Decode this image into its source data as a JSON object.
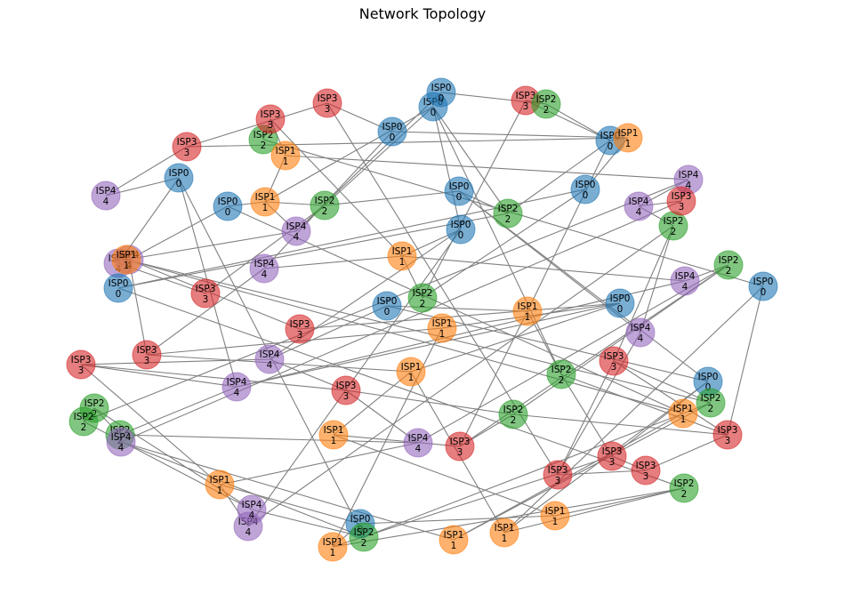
{
  "title": "Network Topology",
  "colors": {
    "ISP0": "#1f77b4",
    "ISP1": "#ff7f0e",
    "ISP2": "#2ca02c",
    "ISP3": "#d62728",
    "ISP4": "#9467bd",
    "edge": "#808080"
  },
  "nodes": [
    {
      "id": "n1",
      "isp": "ISP4",
      "label": "4"
    },
    {
      "id": "n2",
      "isp": "ISP0",
      "label": "0"
    },
    {
      "id": "n3",
      "isp": "ISP0",
      "label": "0"
    },
    {
      "id": "n4",
      "isp": "ISP4",
      "label": "4"
    },
    {
      "id": "n5",
      "isp": "ISP0",
      "label": "0"
    },
    {
      "id": "n6",
      "isp": "ISP3",
      "label": "3"
    },
    {
      "id": "n7",
      "isp": "ISP0",
      "label": "0"
    },
    {
      "id": "n8",
      "isp": "ISP2",
      "label": "2"
    },
    {
      "id": "n9",
      "isp": "ISP3",
      "label": "3"
    },
    {
      "id": "n10",
      "isp": "ISP1",
      "label": "1"
    },
    {
      "id": "n11",
      "isp": "ISP1",
      "label": "1"
    },
    {
      "id": "n12",
      "isp": "ISP0",
      "label": "0"
    },
    {
      "id": "n13",
      "isp": "ISP0",
      "label": "0"
    },
    {
      "id": "n14",
      "isp": "ISP3",
      "label": "3"
    },
    {
      "id": "n15",
      "isp": "ISP4",
      "label": "4"
    },
    {
      "id": "n16",
      "isp": "ISP2",
      "label": "2"
    },
    {
      "id": "n17",
      "isp": "ISP3",
      "label": "3"
    },
    {
      "id": "n18",
      "isp": "ISP0",
      "label": "0"
    },
    {
      "id": "n19",
      "isp": "ISP1",
      "label": "1"
    },
    {
      "id": "n20",
      "isp": "ISP2",
      "label": "2"
    },
    {
      "id": "n21",
      "isp": "ISP4",
      "label": "4"
    },
    {
      "id": "n22",
      "isp": "ISP0",
      "label": "0"
    },
    {
      "id": "n23",
      "isp": "ISP2",
      "label": "2"
    },
    {
      "id": "n24",
      "isp": "ISP3",
      "label": "3"
    },
    {
      "id": "n25",
      "isp": "ISP2",
      "label": "2"
    },
    {
      "id": "n26",
      "isp": "ISP0",
      "label": "0"
    },
    {
      "id": "n27",
      "isp": "ISP1",
      "label": "1"
    },
    {
      "id": "n28",
      "isp": "ISP0",
      "label": "0"
    },
    {
      "id": "n29",
      "isp": "ISP1",
      "label": "1"
    },
    {
      "id": "n30",
      "isp": "ISP0",
      "label": "0"
    },
    {
      "id": "n31",
      "isp": "ISP4",
      "label": "4"
    },
    {
      "id": "n32",
      "isp": "ISP3",
      "label": "3"
    },
    {
      "id": "n33",
      "isp": "ISP3",
      "label": "3"
    },
    {
      "id": "n34",
      "isp": "ISP1",
      "label": "1"
    },
    {
      "id": "n35",
      "isp": "ISP0",
      "label": "0"
    },
    {
      "id": "n36",
      "isp": "ISP1",
      "label": "1"
    },
    {
      "id": "n37",
      "isp": "ISP1",
      "label": "1"
    },
    {
      "id": "n38",
      "isp": "ISP3",
      "label": "3"
    },
    {
      "id": "n39",
      "isp": "ISP4",
      "label": "4"
    },
    {
      "id": "n40",
      "isp": "ISP2",
      "label": "2"
    },
    {
      "id": "n41",
      "isp": "ISP4",
      "label": "4"
    },
    {
      "id": "n42",
      "isp": "ISP2",
      "label": "2"
    },
    {
      "id": "n43",
      "isp": "ISP3",
      "label": "3"
    },
    {
      "id": "n44",
      "isp": "ISP4",
      "label": "4"
    },
    {
      "id": "n45",
      "isp": "ISP3",
      "label": "3"
    },
    {
      "id": "n46",
      "isp": "ISP2",
      "label": "2"
    },
    {
      "id": "n47",
      "isp": "ISP4",
      "label": "4"
    },
    {
      "id": "n48",
      "isp": "ISP1",
      "label": "1"
    },
    {
      "id": "n49",
      "isp": "ISP4",
      "label": "4"
    },
    {
      "id": "n50",
      "isp": "ISP0",
      "label": "0"
    },
    {
      "id": "n51",
      "isp": "ISP1",
      "label": "1"
    },
    {
      "id": "n52",
      "isp": "ISP1",
      "label": "1"
    },
    {
      "id": "n53",
      "isp": "ISP2",
      "label": "2"
    },
    {
      "id": "n54",
      "isp": "ISP1",
      "label": "1"
    },
    {
      "id": "n55",
      "isp": "ISP0",
      "label": "0"
    },
    {
      "id": "n56",
      "isp": "ISP0",
      "label": "0"
    },
    {
      "id": "n57",
      "isp": "ISP3",
      "label": "3"
    },
    {
      "id": "n58",
      "isp": "ISP2",
      "label": "2"
    },
    {
      "id": "n59",
      "isp": "ISP3",
      "label": "3"
    },
    {
      "id": "n60",
      "isp": "ISP3",
      "label": "3"
    },
    {
      "id": "n61",
      "isp": "ISP3",
      "label": "3"
    },
    {
      "id": "n62",
      "isp": "ISP3",
      "label": "3"
    },
    {
      "id": "n63",
      "isp": "ISP4",
      "label": "4"
    },
    {
      "id": "n64",
      "isp": "ISP2",
      "label": "2"
    },
    {
      "id": "n65",
      "isp": "ISP4",
      "label": "4"
    },
    {
      "id": "n66",
      "isp": "ISP4",
      "label": "4"
    },
    {
      "id": "n67",
      "isp": "ISP3",
      "label": "3"
    },
    {
      "id": "n68",
      "isp": "ISP2",
      "label": "2"
    },
    {
      "id": "n69",
      "isp": "ISP2",
      "label": "2"
    },
    {
      "id": "n70",
      "isp": "ISP4",
      "label": "4"
    },
    {
      "id": "n71",
      "isp": "ISP4",
      "label": "4"
    },
    {
      "id": "n72",
      "isp": "ISP2",
      "label": "2"
    },
    {
      "id": "n73",
      "isp": "ISP1",
      "label": "1"
    },
    {
      "id": "n74",
      "isp": "ISP2",
      "label": "2"
    },
    {
      "id": "n75",
      "isp": "ISP1",
      "label": "1"
    },
    {
      "id": "n76",
      "isp": "ISP1",
      "label": "1"
    }
  ],
  "edges": [
    [
      "n1",
      "n2"
    ],
    [
      "n1",
      "n6"
    ],
    [
      "n2",
      "n41"
    ],
    [
      "n2",
      "n4"
    ],
    [
      "n2",
      "n72"
    ],
    [
      "n3",
      "n75"
    ],
    [
      "n3",
      "n31"
    ],
    [
      "n3",
      "n11"
    ],
    [
      "n4",
      "n17"
    ],
    [
      "n5",
      "n23"
    ],
    [
      "n5",
      "n28"
    ],
    [
      "n6",
      "n27"
    ],
    [
      "n6",
      "n14"
    ],
    [
      "n7",
      "n58"
    ],
    [
      "n7",
      "n11"
    ],
    [
      "n7",
      "n23"
    ],
    [
      "n7",
      "n16"
    ],
    [
      "n7",
      "n18"
    ],
    [
      "n8",
      "n9"
    ],
    [
      "n8",
      "n56"
    ],
    [
      "n9",
      "n10"
    ],
    [
      "n9",
      "n19"
    ],
    [
      "n10",
      "n11"
    ],
    [
      "n10",
      "n66"
    ],
    [
      "n11",
      "n15"
    ],
    [
      "n11",
      "n16"
    ],
    [
      "n12",
      "n27"
    ],
    [
      "n12",
      "n21"
    ],
    [
      "n13",
      "n15"
    ],
    [
      "n14",
      "n12"
    ],
    [
      "n14",
      "n61"
    ],
    [
      "n15",
      "n16"
    ],
    [
      "n15",
      "n76"
    ],
    [
      "n16",
      "n17"
    ],
    [
      "n16",
      "n22"
    ],
    [
      "n18",
      "n19"
    ],
    [
      "n18",
      "n44"
    ],
    [
      "n18",
      "n49"
    ],
    [
      "n19",
      "n39"
    ],
    [
      "n19",
      "n21"
    ],
    [
      "n19",
      "n20"
    ],
    [
      "n20",
      "n28"
    ],
    [
      "n22",
      "n23"
    ],
    [
      "n22",
      "n63"
    ],
    [
      "n22",
      "n55"
    ],
    [
      "n23",
      "n26"
    ],
    [
      "n24",
      "n26"
    ],
    [
      "n24",
      "n25"
    ],
    [
      "n25",
      "n26"
    ],
    [
      "n26",
      "n27"
    ],
    [
      "n26",
      "n29"
    ],
    [
      "n27",
      "n28"
    ],
    [
      "n29",
      "n30"
    ],
    [
      "n29",
      "n38"
    ],
    [
      "n29",
      "n58"
    ],
    [
      "n30",
      "n55"
    ],
    [
      "n30",
      "n44"
    ],
    [
      "n31",
      "n32"
    ],
    [
      "n31",
      "n33"
    ],
    [
      "n32",
      "n34"
    ],
    [
      "n32",
      "n36"
    ],
    [
      "n33",
      "n35"
    ],
    [
      "n34",
      "n35"
    ],
    [
      "n34",
      "n51"
    ],
    [
      "n35",
      "n36"
    ],
    [
      "n35",
      "n41"
    ],
    [
      "n36",
      "n37"
    ],
    [
      "n36",
      "n54"
    ],
    [
      "n37",
      "n38"
    ],
    [
      "n37",
      "n52"
    ],
    [
      "n38",
      "n40"
    ],
    [
      "n38",
      "n42"
    ],
    [
      "n39",
      "n40"
    ],
    [
      "n39",
      "n41"
    ],
    [
      "n40",
      "n42"
    ],
    [
      "n40",
      "n47"
    ],
    [
      "n41",
      "n43"
    ],
    [
      "n41",
      "n46"
    ],
    [
      "n42",
      "n45"
    ],
    [
      "n43",
      "n44"
    ],
    [
      "n43",
      "n45"
    ],
    [
      "n43",
      "n48"
    ],
    [
      "n44",
      "n45"
    ],
    [
      "n45",
      "n47"
    ],
    [
      "n46",
      "n47"
    ],
    [
      "n46",
      "n68"
    ],
    [
      "n47",
      "n48"
    ],
    [
      "n48",
      "n49"
    ],
    [
      "n48",
      "n50"
    ],
    [
      "n49",
      "n64"
    ],
    [
      "n50",
      "n51"
    ],
    [
      "n50",
      "n52"
    ],
    [
      "n51",
      "n57"
    ],
    [
      "n51",
      "n53"
    ],
    [
      "n52",
      "n53"
    ],
    [
      "n53",
      "n54"
    ],
    [
      "n54",
      "n55"
    ],
    [
      "n54",
      "n56"
    ],
    [
      "n55",
      "n57"
    ],
    [
      "n56",
      "n60"
    ],
    [
      "n57",
      "n58"
    ],
    [
      "n57",
      "n59"
    ],
    [
      "n58",
      "n60"
    ],
    [
      "n59",
      "n60"
    ],
    [
      "n59",
      "n61"
    ],
    [
      "n60",
      "n62"
    ],
    [
      "n61",
      "n62"
    ],
    [
      "n61",
      "n63"
    ],
    [
      "n62",
      "n64"
    ],
    [
      "n62",
      "n74"
    ],
    [
      "n63",
      "n64"
    ],
    [
      "n64",
      "n65"
    ],
    [
      "n65",
      "n66"
    ],
    [
      "n65",
      "n67"
    ],
    [
      "n66",
      "n67"
    ],
    [
      "n66",
      "n69"
    ],
    [
      "n67",
      "n70"
    ],
    [
      "n68",
      "n69"
    ],
    [
      "n68",
      "n71"
    ],
    [
      "n69",
      "n71"
    ],
    [
      "n70",
      "n72"
    ],
    [
      "n70",
      "n73"
    ],
    [
      "n71",
      "n72"
    ],
    [
      "n72",
      "n74"
    ],
    [
      "n73",
      "n74"
    ],
    [
      "n73",
      "n75"
    ],
    [
      "n74",
      "n76"
    ],
    [
      "n75",
      "n76"
    ],
    [
      "n13",
      "n25"
    ],
    [
      "n20",
      "n24"
    ],
    [
      "n42",
      "n60"
    ],
    [
      "n5",
      "n53"
    ],
    [
      "n21",
      "n32"
    ]
  ]
}
